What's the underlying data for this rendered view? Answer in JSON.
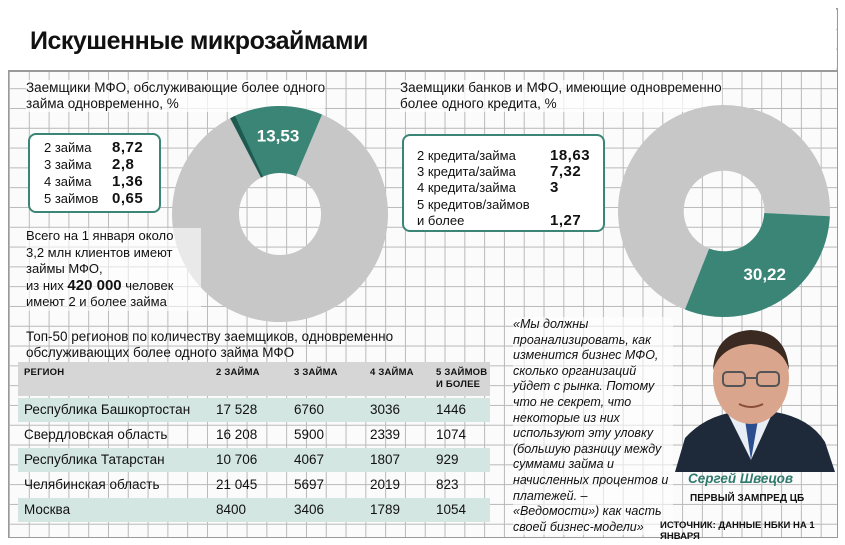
{
  "title": "Искушенные микрозаймами",
  "left_chart": {
    "subtitle_line1": "Заемщики МФО, обслуживающие более одного",
    "subtitle_line2": "займа одновременно, %",
    "center_value": "13,53",
    "breakdown": [
      {
        "label": "2 займа",
        "value": "8,72"
      },
      {
        "label": "3 займа",
        "value": "2,8"
      },
      {
        "label": "4 займа",
        "value": "1,36"
      },
      {
        "label": "5 займов",
        "value": "0,65"
      }
    ]
  },
  "right_chart": {
    "subtitle_line1": "Заемщики банков и МФО, имеющие одновременно",
    "subtitle_line2": "более одного кредита, %",
    "center_value": "30,22",
    "breakdown": [
      {
        "label": "2 кредита/займа",
        "value": "18,63"
      },
      {
        "label": "3 кредита/займа",
        "value": "7,32"
      },
      {
        "label": "4 кредита/займа",
        "value": "3"
      },
      {
        "label": "5 кредитов/займов",
        "label2": "и более",
        "value": "1,27"
      }
    ]
  },
  "note": {
    "line1": "Всего на 1 января около",
    "line2": "3,2 млн клиентов имеют",
    "line3": "займы МФО,",
    "line4_pre": "из них",
    "line4_big": "420 000",
    "line4_post": "человек",
    "line5": "имеют 2 и более займа"
  },
  "table": {
    "title_line1": "Топ-50 регионов по количеству заемщиков, одновременно",
    "title_line2": "обслуживающих более одного займа МФО",
    "headers": [
      "РЕГИОН",
      "2 ЗАЙМА",
      "3 ЗАЙМА",
      "4 ЗАЙМА",
      "5 ЗАЙМОВ",
      "И БОЛЕЕ"
    ],
    "rows": [
      [
        "Республика Башкортостан",
        "17 528",
        "6760",
        "3036",
        "1446"
      ],
      [
        "Свердловская область",
        "16 208",
        "5900",
        "2339",
        "1074"
      ],
      [
        "Республика Татарстан",
        "10 706",
        "4067",
        "1807",
        "929"
      ],
      [
        "Челябинская область",
        "21 045",
        "5697",
        "2019",
        "823"
      ],
      [
        "Москва",
        "8400",
        "3406",
        "1789",
        "1054"
      ]
    ]
  },
  "quote": {
    "lines": [
      "«Мы должны",
      "проанализировать, как",
      "изменится бизнес МФО,",
      "сколько организаций",
      "уйдет с рынка. Потому",
      "что не секрет, что",
      "некоторые из них",
      "используют эту уловку",
      "(большую разницу между",
      "суммами займа и",
      "начисленных процентов и",
      "платежей. –",
      "«Ведомости») как часть",
      "своей бизнес-модели»"
    ]
  },
  "person": {
    "name": "Сергей Швецов",
    "role": "ПЕРВЫЙ ЗАМПРЕД ЦБ"
  },
  "source": "ИСТОЧНИК: ДАННЫЕ НБКИ НА 1 ЯНВАРЯ",
  "colors": {
    "accent": "#3b8577",
    "accent_dark": "#1f5a50",
    "donut_rest": "#c7c7c7",
    "band": "#d3e6e1"
  },
  "chart_data": [
    {
      "type": "pie",
      "title": "Заемщики МФО, обслуживающие более одного займа одновременно, %",
      "categories": [
        "2 займа",
        "3 займа",
        "4 займа",
        "5 займов"
      ],
      "values": [
        8.72,
        2.8,
        1.36,
        0.65
      ],
      "total_highlighted": 13.53
    },
    {
      "type": "pie",
      "title": "Заемщики банков и МФО, имеющие одновременно более одного кредита, %",
      "categories": [
        "2 кредита/займа",
        "3 кредита/займа",
        "4 кредита/займа",
        "5 кредитов/займов и более"
      ],
      "values": [
        18.63,
        7.32,
        3,
        1.27
      ],
      "total_highlighted": 30.22
    },
    {
      "type": "table",
      "title": "Топ-50 регионов по количеству заемщиков, одновременно обслуживающих более одного займа МФО",
      "columns": [
        "РЕГИОН",
        "2 ЗАЙМА",
        "3 ЗАЙМА",
        "4 ЗАЙМА",
        "5 ЗАЙМОВ И БОЛЕЕ"
      ],
      "rows": [
        [
          "Республика Башкортостан",
          17528,
          6760,
          3036,
          1446
        ],
        [
          "Свердловская область",
          16208,
          5900,
          2339,
          1074
        ],
        [
          "Республика Татарстан",
          10706,
          4067,
          1807,
          929
        ],
        [
          "Челябинская область",
          21045,
          5697,
          2019,
          823
        ],
        [
          "Москва",
          8400,
          3406,
          1789,
          1054
        ]
      ]
    }
  ]
}
